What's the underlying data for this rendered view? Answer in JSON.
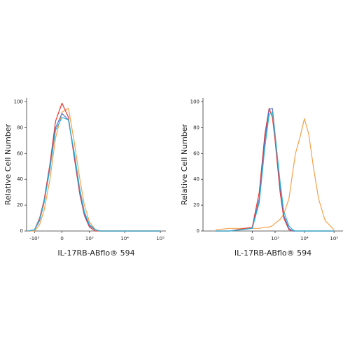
{
  "chart_data": [
    {
      "type": "line",
      "xlabel": "IL-17RB-ABflo® 594",
      "ylabel": "Relative Cell Number",
      "xscale": "asinh",
      "x": [
        -1500,
        -1000,
        -700,
        -500,
        -300,
        -150,
        0,
        150,
        300,
        500,
        700,
        1000,
        1500,
        2000,
        3000,
        10000,
        100000
      ],
      "series": [
        {
          "color": "#f5a04a",
          "values": [
            0,
            0,
            5,
            16,
            40,
            72,
            92,
            95,
            70,
            40,
            20,
            7,
            1,
            0,
            0,
            0,
            0
          ]
        },
        {
          "color": "#e8342f",
          "values": [
            0,
            1,
            10,
            24,
            52,
            85,
            99,
            88,
            58,
            28,
            12,
            3,
            0,
            0,
            0,
            0,
            0
          ]
        },
        {
          "color": "#5a6fc4",
          "values": [
            0,
            1,
            8,
            22,
            50,
            80,
            91,
            86,
            60,
            30,
            13,
            4,
            1,
            0,
            0,
            0,
            0
          ]
        },
        {
          "color": "#2ab4d4",
          "values": [
            0,
            1,
            9,
            22,
            48,
            78,
            88,
            86,
            62,
            32,
            15,
            5,
            1,
            0,
            0,
            0,
            0
          ]
        }
      ],
      "xlim": [
        -1700,
        143000
      ],
      "xticks": [
        {
          "value": -1000,
          "label": "-10³"
        },
        0,
        {
          "value": 1000,
          "label": "10³"
        },
        {
          "value": 10000,
          "label": "10⁴"
        },
        {
          "value": 100000,
          "label": "10⁵"
        }
      ],
      "ylim": [
        0,
        103
      ],
      "yticks": [
        0,
        20,
        40,
        60,
        80,
        100
      ]
    },
    {
      "type": "line",
      "xlabel": "IL-17RB-ABflo® 594",
      "ylabel": "Relative Cell Number",
      "xscale": "asinh",
      "x": [
        -3000,
        -1000,
        0,
        200,
        400,
        600,
        800,
        1000,
        1500,
        2000,
        3000,
        4000,
        5000,
        7000,
        10000,
        14000,
        20000,
        30000,
        50000,
        100000
      ],
      "series": [
        {
          "color": "#f5a04a",
          "values": [
            1,
            2,
            2,
            2,
            3,
            3,
            4,
            6,
            9,
            13,
            25,
            45,
            60,
            72,
            87,
            75,
            50,
            25,
            8,
            1
          ]
        },
        {
          "color": "#e8342f",
          "values": [
            0,
            0,
            3,
            30,
            75,
            95,
            88,
            70,
            30,
            10,
            1,
            0,
            0,
            0,
            0,
            0,
            0,
            0,
            0,
            0
          ]
        },
        {
          "color": "#5a6fc4",
          "values": [
            0,
            0,
            2,
            25,
            70,
            94,
            95,
            75,
            35,
            12,
            2,
            0,
            0,
            0,
            0,
            0,
            0,
            0,
            0,
            0
          ]
        },
        {
          "color": "#2ab4d4",
          "values": [
            0,
            0,
            2,
            22,
            65,
            90,
            92,
            74,
            38,
            15,
            4,
            1,
            0,
            0,
            0,
            0,
            0,
            0,
            0,
            0
          ]
        }
      ],
      "xlim": [
        -8000,
        200000
      ],
      "xticks": [
        0,
        {
          "value": 1000,
          "label": "10³"
        },
        {
          "value": 10000,
          "label": "10⁴"
        },
        {
          "value": 100000,
          "label": "10⁵"
        }
      ],
      "ylim": [
        0,
        103
      ],
      "yticks": [
        0,
        20,
        40,
        60,
        80,
        100
      ]
    }
  ]
}
